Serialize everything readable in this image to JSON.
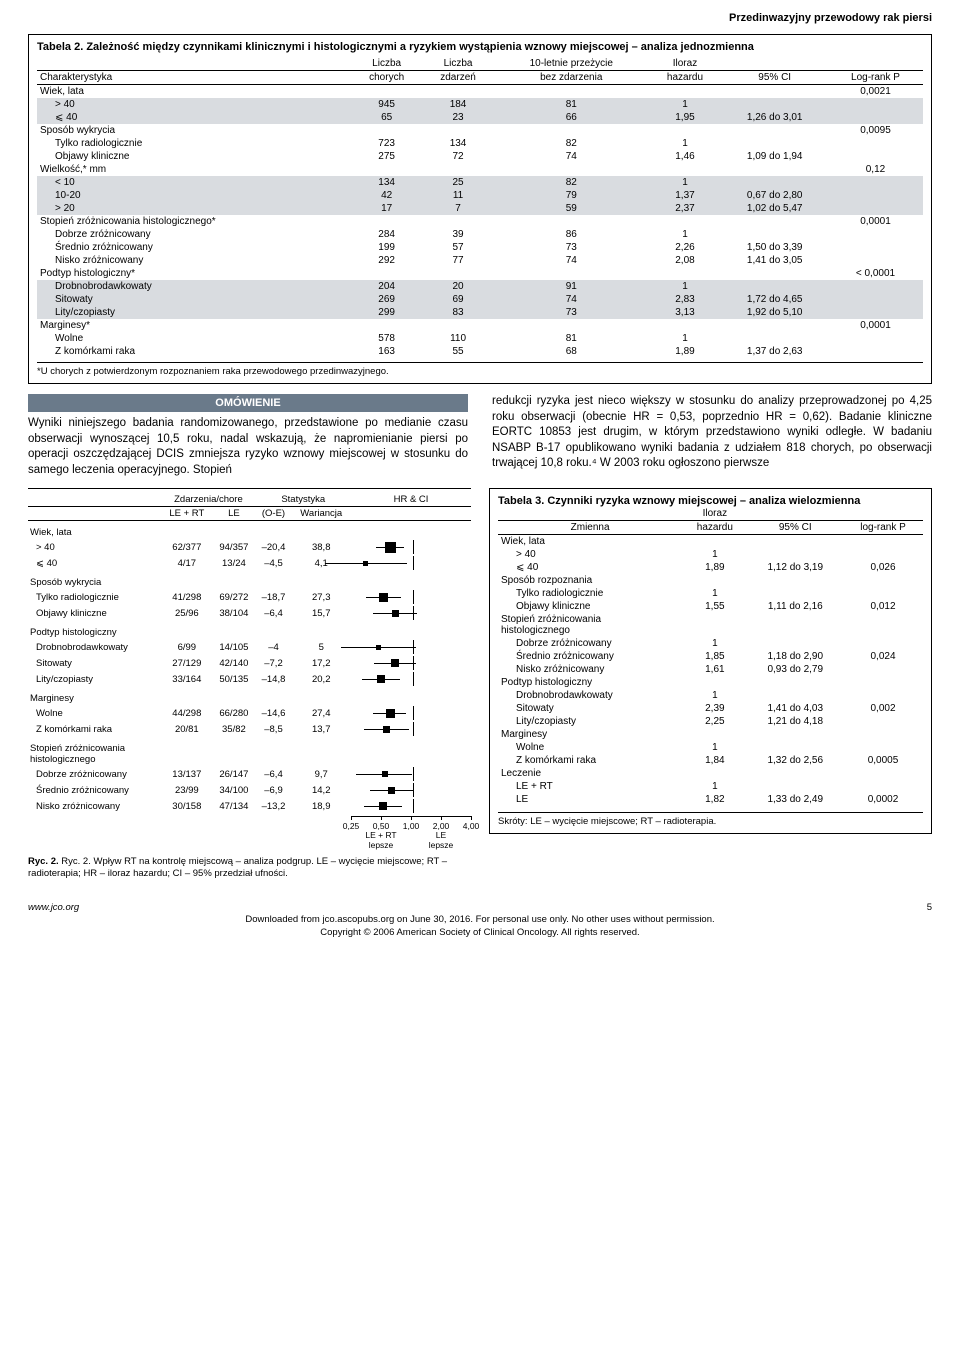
{
  "banner": "Przedinwazyjny przewodowy rak piersi",
  "table2": {
    "title": "Tabela 2. Zależność między czynnikami klinicznymi i histologicznymi a ryzykiem wystąpienia wznowy miejscowej – analiza jednozmienna",
    "headers": {
      "char": "Charakterystyka",
      "n": "Liczba\nchorych",
      "ev": "Liczba\nzdarzeń",
      "surv": "10-letnie przeżycie\nbez zdarzenia",
      "hr": "Iloraz\nhazardu",
      "ci": "95% CI",
      "p": "Log-rank P"
    },
    "groups": [
      {
        "name": "Wiek, lata",
        "p": "0,0021",
        "rows": [
          {
            "label": "> 40",
            "n": "945",
            "ev": "184",
            "surv": "81",
            "hr": "1",
            "ci": "",
            "shade": true
          },
          {
            "label": "⩽ 40",
            "n": "65",
            "ev": "23",
            "surv": "66",
            "hr": "1,95",
            "ci": "1,26 do 3,01",
            "shade": true
          }
        ]
      },
      {
        "name": "Sposób wykrycia",
        "p": "0,0095",
        "rows": [
          {
            "label": "Tylko radiologicznie",
            "n": "723",
            "ev": "134",
            "surv": "82",
            "hr": "1",
            "ci": ""
          },
          {
            "label": "Objawy kliniczne",
            "n": "275",
            "ev": "72",
            "surv": "74",
            "hr": "1,46",
            "ci": "1,09 do 1,94"
          }
        ]
      },
      {
        "name": "Wielkość,* mm",
        "p": "0,12",
        "rows": [
          {
            "label": "< 10",
            "n": "134",
            "ev": "25",
            "surv": "82",
            "hr": "1",
            "ci": "",
            "shade": true
          },
          {
            "label": "10-20",
            "n": "42",
            "ev": "11",
            "surv": "79",
            "hr": "1,37",
            "ci": "0,67 do 2,80",
            "shade": true
          },
          {
            "label": "> 20",
            "n": "17",
            "ev": "7",
            "surv": "59",
            "hr": "2,37",
            "ci": "1,02 do 5,47",
            "shade": true
          }
        ]
      },
      {
        "name": "Stopień zróżnicowania histologicznego*",
        "p": "0,0001",
        "rows": [
          {
            "label": "Dobrze zróżnicowany",
            "n": "284",
            "ev": "39",
            "surv": "86",
            "hr": "1",
            "ci": ""
          },
          {
            "label": "Średnio zróżnicowany",
            "n": "199",
            "ev": "57",
            "surv": "73",
            "hr": "2,26",
            "ci": "1,50 do 3,39"
          },
          {
            "label": "Nisko zróżnicowany",
            "n": "292",
            "ev": "77",
            "surv": "74",
            "hr": "2,08",
            "ci": "1,41 do 3,05"
          }
        ]
      },
      {
        "name": "Podtyp histologiczny*",
        "p": "< 0,0001",
        "rows": [
          {
            "label": "Drobnobrodawkowaty",
            "n": "204",
            "ev": "20",
            "surv": "91",
            "hr": "1",
            "ci": "",
            "shade": true
          },
          {
            "label": "Sitowaty",
            "n": "269",
            "ev": "69",
            "surv": "74",
            "hr": "2,83",
            "ci": "1,72 do 4,65",
            "shade": true
          },
          {
            "label": "Lity/czopiasty",
            "n": "299",
            "ev": "83",
            "surv": "73",
            "hr": "3,13",
            "ci": "1,92 do 5,10",
            "shade": true
          }
        ]
      },
      {
        "name": "Marginesy*",
        "p": "0,0001",
        "rows": [
          {
            "label": "Wolne",
            "n": "578",
            "ev": "110",
            "surv": "81",
            "hr": "1",
            "ci": ""
          },
          {
            "label": "Z komórkami raka",
            "n": "163",
            "ev": "55",
            "surv": "68",
            "hr": "1,89",
            "ci": "1,37 do 2,63"
          }
        ]
      }
    ],
    "footnote": "*U chorych z potwierdzonym rozpoznaniem raka przewodowego przedinwazyjnego."
  },
  "discussion": {
    "heading": "OMÓWIENIE",
    "left": "Wyniki niniejszego badania randomizowanego, przedstawione po medianie czasu obserwacji wynoszącej 10,5 roku, nadal wskazują, że napromienianie piersi po operacji oszczędzającej DCIS zmniejsza ryzyko wznowy miejscowej w stosunku do samego leczenia operacyjnego. Stopień",
    "right": "redukcji ryzyka jest nieco większy w stosunku do analizy przeprowadzonej po 4,25 roku obserwacji (obecnie HR = 0,53, poprzednio HR = 0,62). Badanie kliniczne EORTC 10853 jest drugim, w którym przedstawiono wyniki odległe. W badaniu NSABP B-17 opublikowano wyniki badania z udziałem 818 chorych, po obserwacji trwającej 10,8 roku.⁴ W 2003 roku ogłoszono pierwsze"
  },
  "forest": {
    "headers": {
      "ev": "Zdarzenia/chore",
      "stat": "Statystyka",
      "hrci": "HR & CI",
      "c1": "LE + RT",
      "c2": "LE",
      "c3": "(O-E)",
      "c4": "Wariancja",
      "c5": "LE + RT",
      "c6": "LE"
    },
    "axis": {
      "ticks": [
        "0,25",
        "0,50",
        "1,00",
        "2,00",
        "4,00"
      ],
      "leftlab": "LE + RT\nlepsze",
      "rightlab": "LE\nlepsze"
    },
    "groups": [
      {
        "name": "Wiek, lata",
        "rows": [
          {
            "label": "> 40",
            "a": "62/377",
            "b": "94/357",
            "oe": "–20,4",
            "v": "38,8",
            "hr": 0.59,
            "lo": 0.43,
            "hi": 0.81,
            "size": 11
          },
          {
            "label": "⩽ 40",
            "a": "4/17",
            "b": "13/24",
            "oe": "–4,5",
            "v": "4,1",
            "hr": 0.33,
            "lo": 0.13,
            "hi": 0.88,
            "size": 5
          }
        ]
      },
      {
        "name": "Sposób wykrycia",
        "rows": [
          {
            "label": "Tylko radiologicznie",
            "a": "41/298",
            "b": "69/272",
            "oe": "–18,7",
            "v": "27,3",
            "hr": 0.5,
            "lo": 0.34,
            "hi": 0.75,
            "size": 9
          },
          {
            "label": "Objawy kliniczne",
            "a": "25/96",
            "b": "38/104",
            "oe": "–6,4",
            "v": "15,7",
            "hr": 0.67,
            "lo": 0.4,
            "hi": 1.1,
            "size": 7
          }
        ]
      },
      {
        "name": "Podtyp histologiczny",
        "rows": [
          {
            "label": "Drobnobrodawkowaty",
            "a": "6/99",
            "b": "14/105",
            "oe": "–4",
            "v": "5",
            "hr": 0.45,
            "lo": 0.19,
            "hi": 1.08,
            "size": 5
          },
          {
            "label": "Sitowaty",
            "a": "27/129",
            "b": "42/140",
            "oe": "–7,2",
            "v": "17,2",
            "hr": 0.66,
            "lo": 0.41,
            "hi": 1.06,
            "size": 8
          },
          {
            "label": "Lity/czopiasty",
            "a": "33/164",
            "b": "50/135",
            "oe": "–14,8",
            "v": "20,2",
            "hr": 0.48,
            "lo": 0.31,
            "hi": 0.74,
            "size": 8
          }
        ]
      },
      {
        "name": "Marginesy",
        "rows": [
          {
            "label": "Wolne",
            "a": "44/298",
            "b": "66/280",
            "oe": "–14,6",
            "v": "27,4",
            "hr": 0.59,
            "lo": 0.4,
            "hi": 0.86,
            "size": 9
          },
          {
            "label": "Z komórkami raka",
            "a": "20/81",
            "b": "35/82",
            "oe": "–8,5",
            "v": "13,7",
            "hr": 0.54,
            "lo": 0.32,
            "hi": 0.92,
            "size": 7
          }
        ]
      },
      {
        "name": "Stopień zróżnicowania\nhistologicznego",
        "rows": [
          {
            "label": "Dobrze zróżnicowany",
            "a": "13/137",
            "b": "26/147",
            "oe": "–6,4",
            "v": "9,7",
            "hr": 0.52,
            "lo": 0.27,
            "hi": 0.98,
            "size": 6
          },
          {
            "label": "Średnio zróżnicowany",
            "a": "23/99",
            "b": "34/100",
            "oe": "–6,9",
            "v": "14,2",
            "hr": 0.61,
            "lo": 0.37,
            "hi": 1.03,
            "size": 7
          },
          {
            "label": "Nisko zróżnicowany",
            "a": "30/158",
            "b": "47/134",
            "oe": "–13,2",
            "v": "18,9",
            "hr": 0.5,
            "lo": 0.32,
            "hi": 0.78,
            "size": 8
          }
        ]
      }
    ],
    "caption": "Ryc. 2. Wpływ RT na kontrolę miejscową – analiza podgrup. LE – wycięcie miejscowe; RT – radioterapia; HR – iloraz hazardu; CI – 95% przedział ufności."
  },
  "table3": {
    "title": "Tabela 3. Czynniki ryzyka wznowy miejscowej – analiza wielozmienna",
    "headers": {
      "var": "Zmienna",
      "hr": "Iloraz\nhazardu",
      "ci": "95% CI",
      "p": "log-rank P"
    },
    "groups": [
      {
        "name": "Wiek, lata",
        "rows": [
          {
            "label": "> 40",
            "hr": "1",
            "ci": "",
            "p": ""
          },
          {
            "label": "⩽ 40",
            "hr": "1,89",
            "ci": "1,12 do 3,19",
            "p": "0,026"
          }
        ]
      },
      {
        "name": "Sposób rozpoznania",
        "rows": [
          {
            "label": "Tylko radiologicznie",
            "hr": "1",
            "ci": "",
            "p": ""
          },
          {
            "label": "Objawy kliniczne",
            "hr": "1,55",
            "ci": "1,11 do 2,16",
            "p": "0,012"
          }
        ]
      },
      {
        "name": "Stopień zróżnicowania\nhistologicznego",
        "rows": [
          {
            "label": "Dobrze zróżnicowany",
            "hr": "1",
            "ci": "",
            "p": ""
          },
          {
            "label": "Średnio zróżnicowany",
            "hr": "1,85",
            "ci": "1,18 do 2,90",
            "p": "0,024"
          },
          {
            "label": "Nisko zróżnicowany",
            "hr": "1,61",
            "ci": "0,93 do 2,79",
            "p": ""
          }
        ]
      },
      {
        "name": "Podtyp histologiczny",
        "rows": [
          {
            "label": "Drobnobrodawkowaty",
            "hr": "1",
            "ci": "",
            "p": ""
          },
          {
            "label": "Sitowaty",
            "hr": "2,39",
            "ci": "1,41 do 4,03",
            "p": "0,002"
          },
          {
            "label": "Lity/czopiasty",
            "hr": "2,25",
            "ci": "1,21 do 4,18",
            "p": ""
          }
        ]
      },
      {
        "name": "Marginesy",
        "rows": [
          {
            "label": "Wolne",
            "hr": "1",
            "ci": "",
            "p": ""
          },
          {
            "label": "Z komórkami raka",
            "hr": "1,84",
            "ci": "1,32 do 2,56",
            "p": "0,0005"
          }
        ]
      },
      {
        "name": "Leczenie",
        "rows": [
          {
            "label": "LE + RT",
            "hr": "1",
            "ci": "",
            "p": ""
          },
          {
            "label": "LE",
            "hr": "1,82",
            "ci": "1,33 do 2,49",
            "p": "0,0002"
          }
        ]
      }
    ],
    "footnote": "Skróty: LE – wycięcie miejscowe; RT – radioterapia."
  },
  "footer": {
    "url": "www.jco.org",
    "page": "5",
    "line1": "Downloaded from jco.ascopubs.org on June 30, 2016. For personal use only. No other uses without permission.",
    "line2": "Copyright © 2006 American Society of Clinical Oncology. All rights reserved."
  },
  "forest_plot": {
    "xmin": 0.25,
    "xmax": 4.0,
    "width": 120
  }
}
